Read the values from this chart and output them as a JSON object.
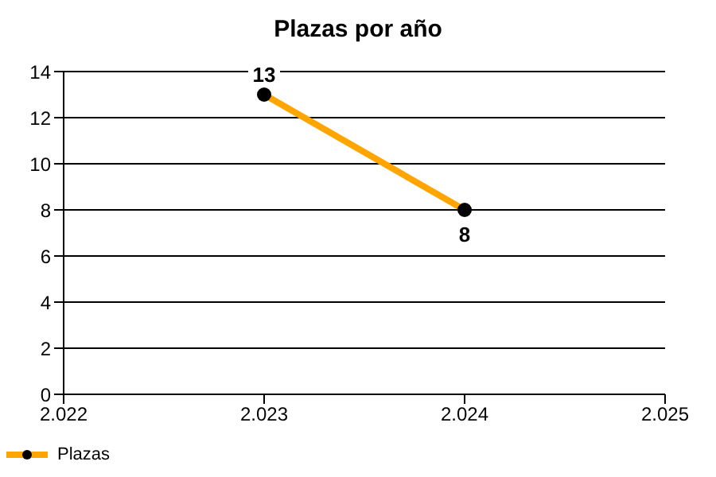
{
  "chart_data": {
    "type": "line",
    "title": "Plazas por año",
    "x": [
      2023,
      2024
    ],
    "series": [
      {
        "name": "Plazas",
        "color": "#ffa500",
        "values": [
          13,
          8
        ]
      }
    ],
    "xlim": [
      2022,
      2025
    ],
    "xticks": [
      {
        "value": 2022,
        "label": "2.022"
      },
      {
        "value": 2023,
        "label": "2.023"
      },
      {
        "value": 2024,
        "label": "2.024"
      },
      {
        "value": 2025,
        "label": "2.025"
      }
    ],
    "ylim": [
      0,
      14
    ],
    "yticks": [
      0,
      2,
      4,
      6,
      8,
      10,
      12,
      14
    ],
    "grid": "y",
    "legend": "bottom left",
    "marker": "circle",
    "data_labels": true
  }
}
